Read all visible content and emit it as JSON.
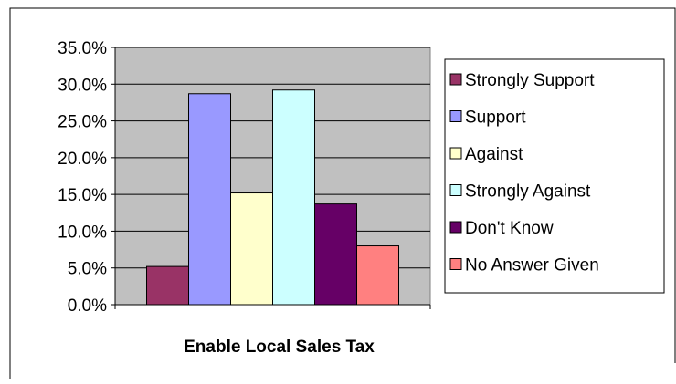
{
  "chart_data": {
    "type": "bar",
    "title": "",
    "xlabel": "",
    "ylabel": "",
    "categories": [
      "Enable Local Sales Tax"
    ],
    "series": [
      {
        "name": "Strongly Support",
        "values": [
          5.2
        ],
        "color": "#993366"
      },
      {
        "name": "Support",
        "values": [
          28.7
        ],
        "color": "#9999ff"
      },
      {
        "name": "Against",
        "values": [
          15.2
        ],
        "color": "#ffffcc"
      },
      {
        "name": "Strongly Against",
        "values": [
          29.2
        ],
        "color": "#ccffff"
      },
      {
        "name": "Don't Know",
        "values": [
          13.7
        ],
        "color": "#660066"
      },
      {
        "name": "No Answer Given",
        "values": [
          8.0
        ],
        "color": "#ff8080"
      }
    ],
    "ylim": [
      0,
      35
    ],
    "y_ticks": [
      "0.0%",
      "5.0%",
      "10.0%",
      "15.0%",
      "20.0%",
      "25.0%",
      "30.0%",
      "35.0%"
    ],
    "grid": true,
    "legend_position": "right",
    "plot_background": "#c0c0c0"
  }
}
